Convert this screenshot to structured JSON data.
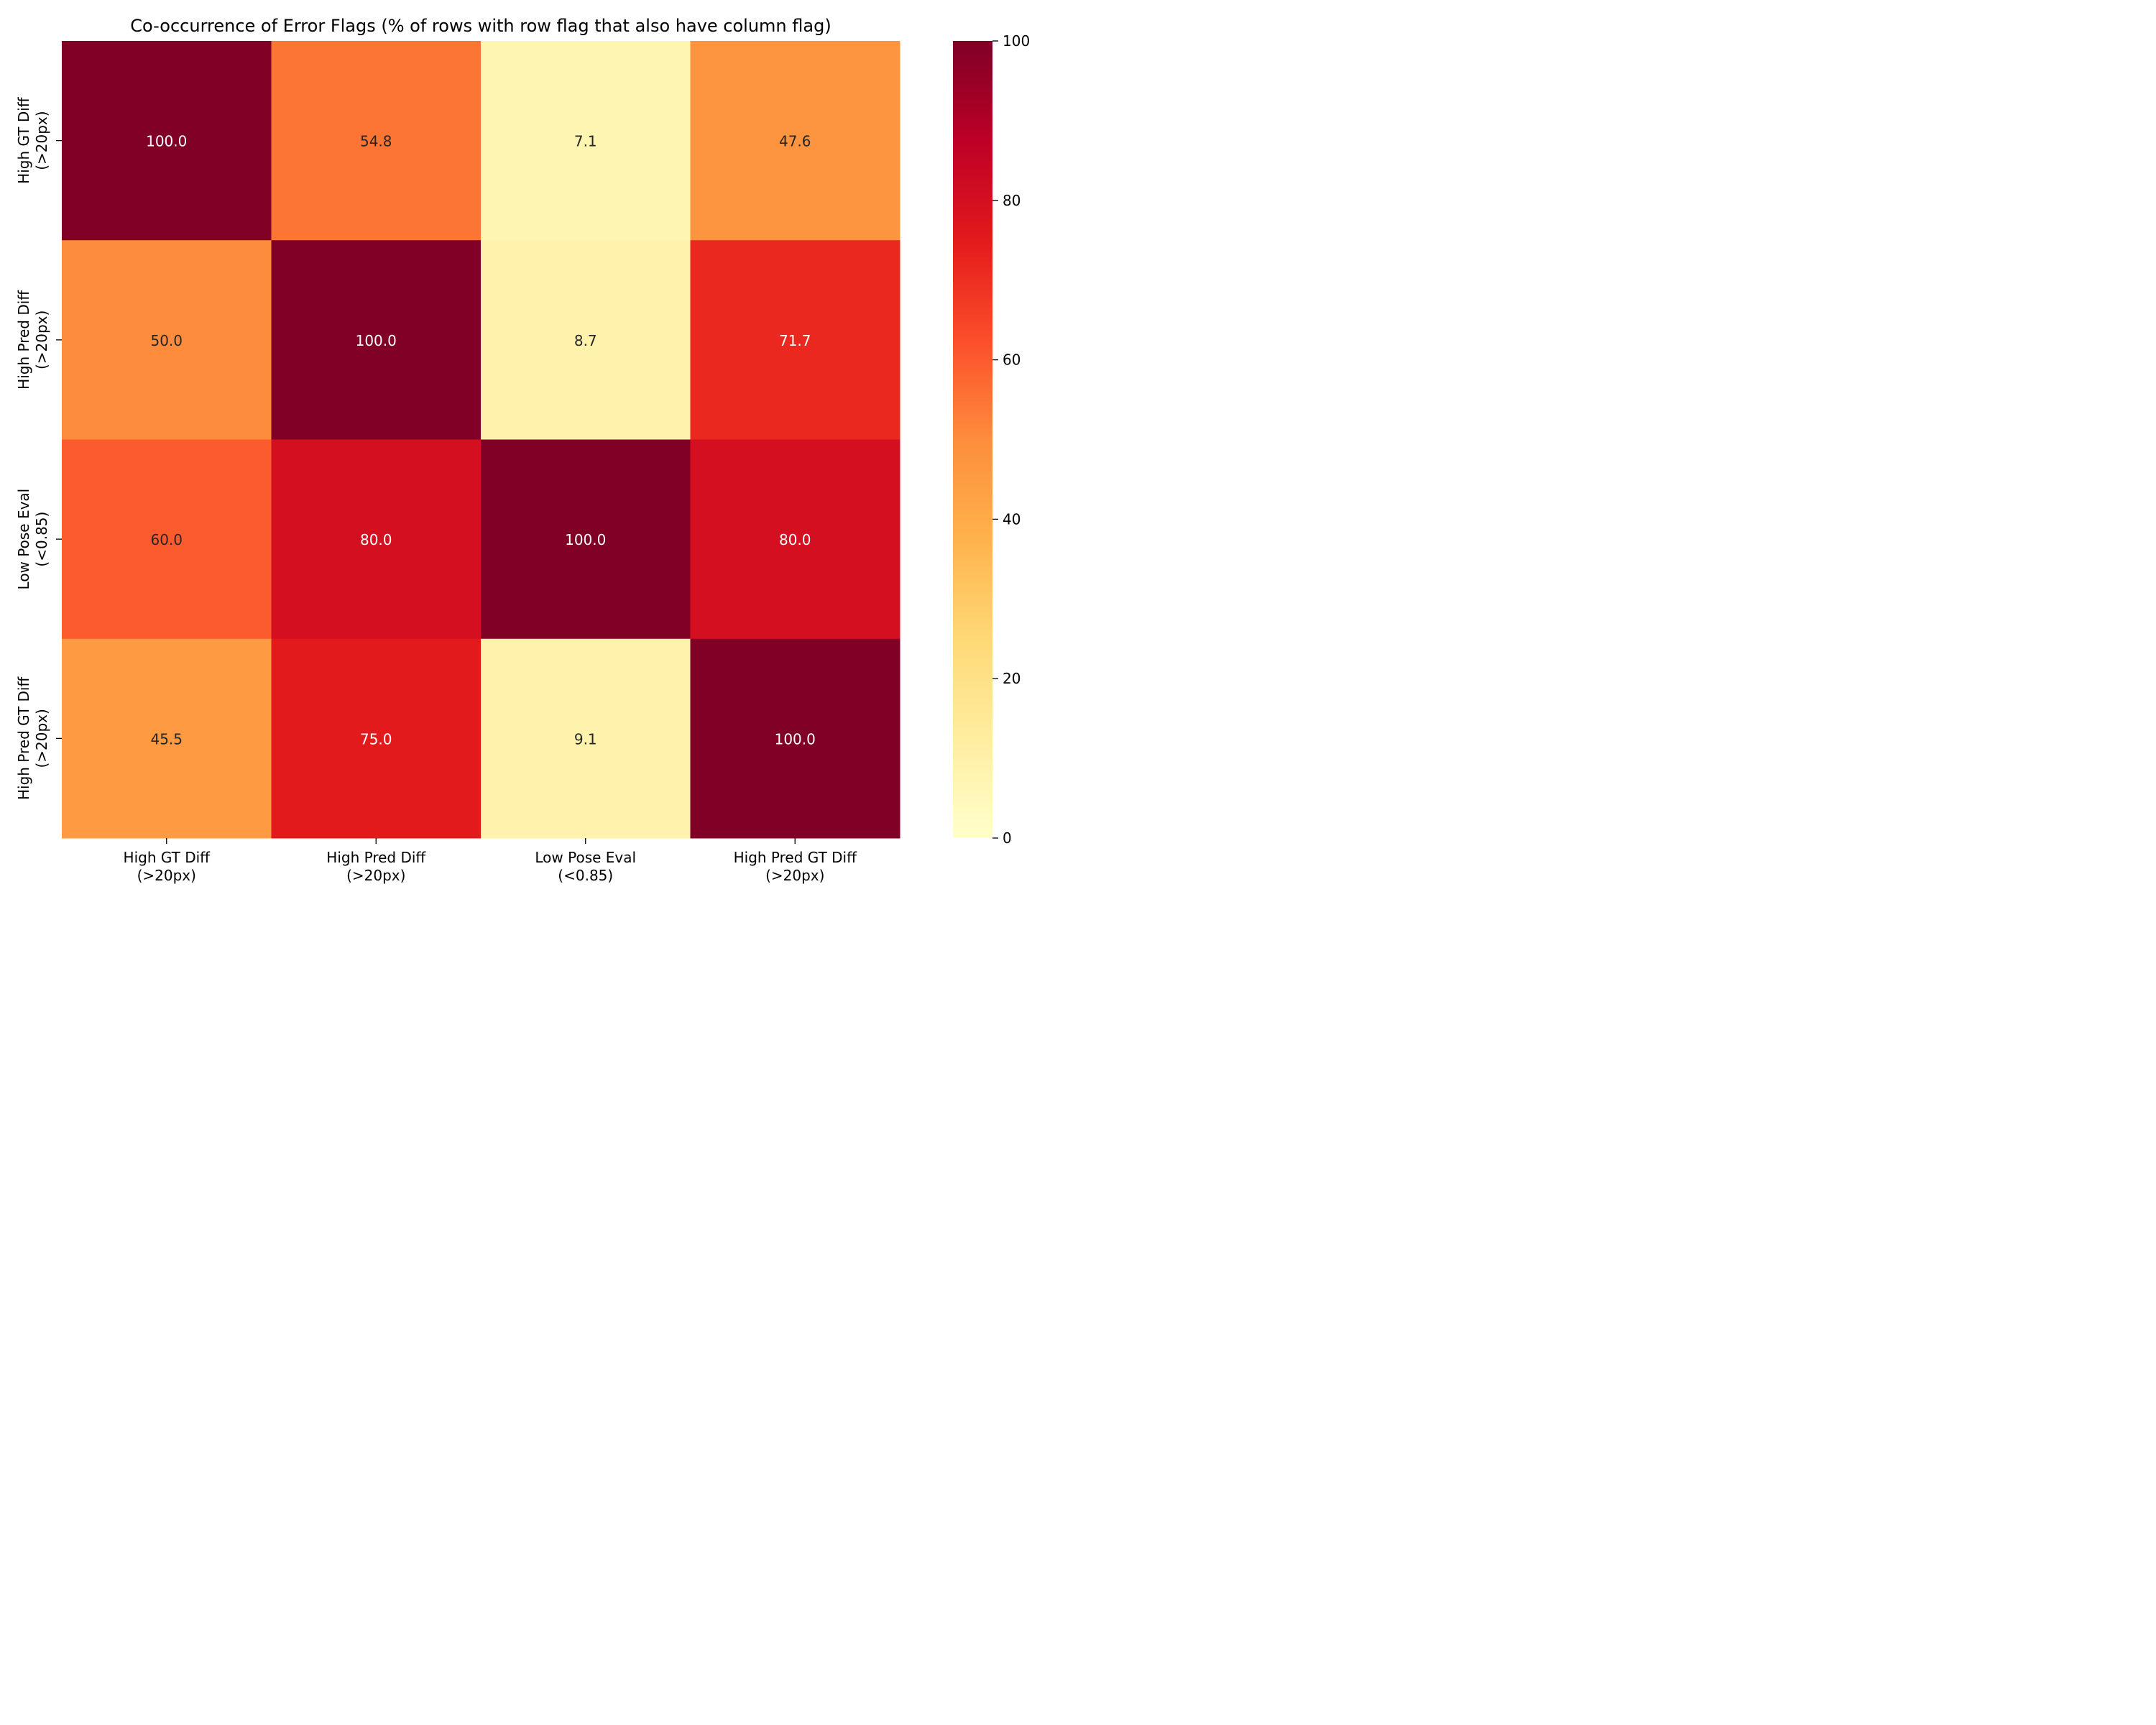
{
  "chart_data": {
    "type": "heatmap",
    "title": "Co-occurrence of Error Flags (% of rows with row flag that also have column flag)",
    "rows": [
      [
        "High GT Diff",
        "(>20px)"
      ],
      [
        "High Pred Diff",
        "(>20px)"
      ],
      [
        "Low Pose Eval",
        "(<0.85)"
      ],
      [
        "High Pred GT Diff",
        "(>20px)"
      ]
    ],
    "columns": [
      [
        "High GT Diff",
        "(>20px)"
      ],
      [
        "High Pred Diff",
        "(>20px)"
      ],
      [
        "Low Pose Eval",
        "(<0.85)"
      ],
      [
        "High Pred GT Diff",
        "(>20px)"
      ]
    ],
    "values": [
      [
        100.0,
        54.8,
        7.1,
        47.6
      ],
      [
        50.0,
        100.0,
        8.7,
        71.7
      ],
      [
        60.0,
        80.0,
        100.0,
        80.0
      ],
      [
        45.5,
        75.0,
        9.1,
        100.0
      ]
    ],
    "value_format": "0.1f",
    "colorbar": {
      "min": 0,
      "max": 100,
      "ticks": [
        0,
        20,
        40,
        60,
        80,
        100
      ],
      "colormap": "YlOrRd",
      "colormap_stops": [
        "#ffffcc",
        "#ffeda0",
        "#fed976",
        "#feb24c",
        "#fd8d3c",
        "#fc4e2a",
        "#e31a1c",
        "#bd0026",
        "#800026"
      ]
    }
  }
}
